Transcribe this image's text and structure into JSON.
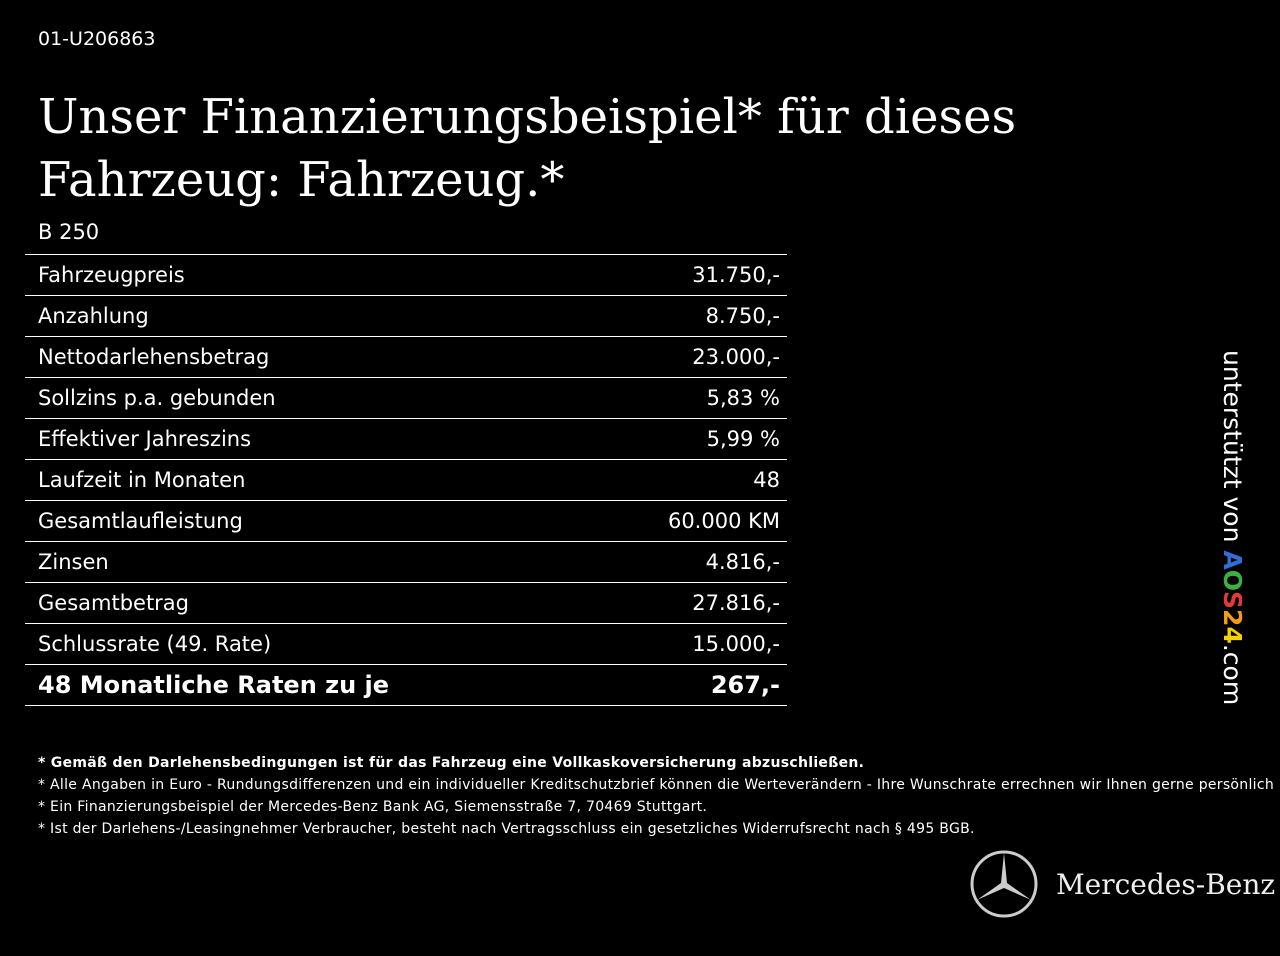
{
  "vehicle_id": "01-U206863",
  "title": "Unser Finanzierungsbeispiel* für dieses Fahrzeug: Fahrzeug.*",
  "model": "B 250",
  "rows": [
    {
      "label": "Fahrzeugpreis",
      "value": "31.750,-"
    },
    {
      "label": "Anzahlung",
      "value": "8.750,-"
    },
    {
      "label": "Nettodarlehensbetrag",
      "value": "23.000,-"
    },
    {
      "label": "Sollzins p.a. gebunden",
      "value": "5,83 %"
    },
    {
      "label": "Effektiver Jahreszins",
      "value": "5,99 %"
    },
    {
      "label": "Laufzeit in Monaten",
      "value": "48"
    },
    {
      "label": "Gesamtlaufleistung",
      "value": "60.000 KM"
    },
    {
      "label": "Zinsen",
      "value": "4.816,-"
    },
    {
      "label": "Gesamtbetrag",
      "value": "27.816,-"
    },
    {
      "label": "Schlussrate (49. Rate)",
      "value": "15.000,-"
    }
  ],
  "total": {
    "label": "48 Monatliche Raten zu je",
    "value": "267,-"
  },
  "notes": [
    "* Gemäß den Darlehensbedingungen ist für das Fahrzeug eine Vollkaskoversicherung abzuschließen.",
    "* Alle Angaben in Euro - Rundungsdifferenzen und ein individueller Kreditschutzbrief können die Werteverändern - Ihre Wunschrate errechnen wir Ihnen gerne persönlich",
    "* Ein Finanzierungsbeispiel der Mercedes-Benz Bank AG, Siemensstraße 7, 70469 Stuttgart.",
    "* Ist der Darlehens-/Leasingnehmer Verbraucher, besteht nach Vertragsschluss ein gesetzliches Widerrufsrecht nach § 495 BGB."
  ],
  "side": {
    "prefix": "unterstützt von ",
    "logo": [
      "A",
      "O",
      "S",
      "2",
      "4"
    ],
    "suffix": ".com",
    "logo_colors": [
      "#2e6fd8",
      "#3cb043",
      "#e53935",
      "#f39c12",
      "#f5d100"
    ]
  },
  "brand": "Mercedes-Benz"
}
